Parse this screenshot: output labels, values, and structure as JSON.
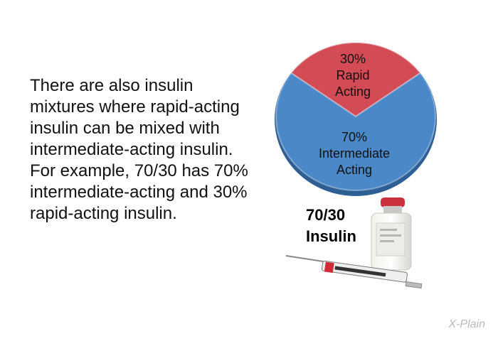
{
  "body_text": "There are also insulin mixtures where rapid-acting insulin can be mixed with intermediate-acting insulin. For example, 70/30 has 70% intermediate-acting and 30% rapid-acting insulin.",
  "product_label": "70/30\nInsulin",
  "brand": "X-Plain",
  "colors": {
    "rapid": "#d24b55",
    "intermediate": "#4a88c8",
    "outline": "#2d5f94"
  },
  "chart_data": {
    "type": "pie",
    "title": "",
    "slices": [
      {
        "label": "30%\nRapid\nActing",
        "value": 30,
        "color": "#d24b55"
      },
      {
        "label": "70%\nIntermediate\nActing",
        "value": 70,
        "color": "#4a88c8"
      }
    ]
  }
}
